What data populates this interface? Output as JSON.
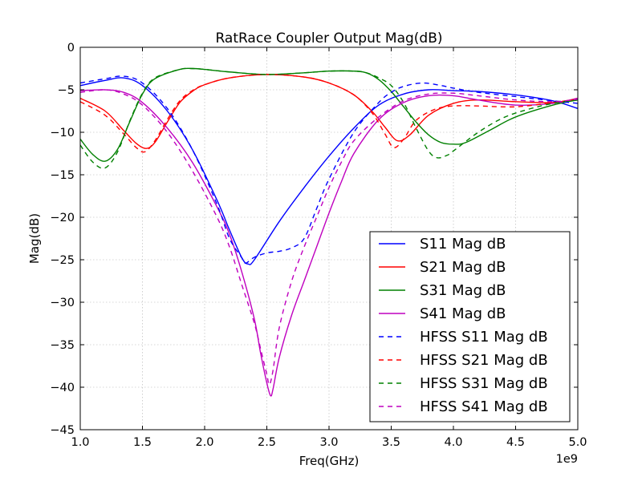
{
  "chart_data": {
    "type": "line",
    "title": "RatRace Coupler Output Mag(dB)",
    "xlabel": "Freq(GHz)",
    "ylabel": "Mag(dB)",
    "x_offset_label": "1e9",
    "xlim": [
      1.0,
      5.0
    ],
    "ylim": [
      -45,
      0
    ],
    "x_ticks": [
      1.0,
      1.5,
      2.0,
      2.5,
      3.0,
      3.5,
      4.0,
      4.5,
      5.0
    ],
    "x_tick_labels": [
      "1.0",
      "1.5",
      "2.0",
      "2.5",
      "3.0",
      "3.5",
      "4.0",
      "4.5",
      "5.0"
    ],
    "y_ticks": [
      0,
      -5,
      -10,
      -15,
      -20,
      -25,
      -30,
      -35,
      -40,
      -45
    ],
    "y_tick_labels": [
      "0",
      "−5",
      "−10",
      "−15",
      "−20",
      "−25",
      "−30",
      "−35",
      "−40",
      "−45"
    ],
    "grid": true,
    "legend_position": "lower-right",
    "series": [
      {
        "name": "S11 Mag dB",
        "color": "#0000ff",
        "style": "solid",
        "x": [
          1.0,
          1.2,
          1.35,
          1.5,
          1.7,
          1.9,
          2.1,
          2.2,
          2.3,
          2.35,
          2.4,
          2.6,
          2.8,
          3.0,
          3.2,
          3.4,
          3.6,
          3.8,
          4.0,
          4.2,
          4.5,
          4.8,
          5.0
        ],
        "y": [
          -4.5,
          -3.9,
          -3.6,
          -4.5,
          -7.5,
          -12.0,
          -18.0,
          -21.5,
          -24.8,
          -25.5,
          -25.0,
          -20.5,
          -16.5,
          -12.8,
          -9.5,
          -6.8,
          -5.5,
          -5.0,
          -5.1,
          -5.2,
          -5.6,
          -6.3,
          -7.2
        ]
      },
      {
        "name": "S21 Mag dB",
        "color": "#ff0000",
        "style": "solid",
        "x": [
          1.0,
          1.2,
          1.35,
          1.45,
          1.53,
          1.6,
          1.7,
          1.8,
          1.9,
          2.0,
          2.2,
          2.5,
          2.8,
          3.0,
          3.2,
          3.35,
          3.45,
          3.55,
          3.65,
          3.8,
          4.0,
          4.2,
          4.5,
          4.8,
          5.0
        ],
        "y": [
          -6.0,
          -7.5,
          -9.8,
          -11.3,
          -11.9,
          -11.2,
          -8.8,
          -6.5,
          -5.2,
          -4.4,
          -3.6,
          -3.2,
          -3.5,
          -4.2,
          -5.6,
          -7.6,
          -9.4,
          -11.0,
          -10.3,
          -8.0,
          -6.6,
          -6.2,
          -6.4,
          -6.5,
          -6.0
        ]
      },
      {
        "name": "S31 Mag dB",
        "color": "#008000",
        "style": "solid",
        "x": [
          1.0,
          1.1,
          1.2,
          1.3,
          1.4,
          1.5,
          1.6,
          1.8,
          1.9,
          2.0,
          2.2,
          2.5,
          2.8,
          3.0,
          3.2,
          3.3,
          3.4,
          3.5,
          3.6,
          3.7,
          3.8,
          3.9,
          4.0,
          4.1,
          4.3,
          4.5,
          4.8,
          5.0
        ],
        "y": [
          -10.8,
          -12.6,
          -13.4,
          -12.0,
          -8.7,
          -5.5,
          -3.7,
          -2.6,
          -2.5,
          -2.6,
          -2.9,
          -3.2,
          -3.0,
          -2.8,
          -2.8,
          -3.0,
          -3.8,
          -5.2,
          -7.0,
          -8.8,
          -10.3,
          -11.2,
          -11.4,
          -11.2,
          -9.7,
          -8.2,
          -6.8,
          -6.2
        ]
      },
      {
        "name": "S41 Mag dB",
        "color": "#bf00bf",
        "style": "solid",
        "x": [
          1.0,
          1.2,
          1.35,
          1.5,
          1.7,
          1.9,
          2.1,
          2.2,
          2.3,
          2.4,
          2.45,
          2.5,
          2.53,
          2.55,
          2.6,
          2.7,
          2.8,
          2.9,
          3.0,
          3.1,
          3.2,
          3.4,
          3.6,
          3.8,
          4.0,
          4.2,
          4.5,
          4.8,
          5.0
        ],
        "y": [
          -5.1,
          -5.0,
          -5.3,
          -6.5,
          -9.5,
          -13.5,
          -18.8,
          -22.0,
          -26.5,
          -32.0,
          -36.0,
          -39.5,
          -41.0,
          -40.2,
          -36.5,
          -31.5,
          -27.5,
          -23.5,
          -19.5,
          -15.8,
          -12.5,
          -8.5,
          -6.5,
          -5.7,
          -5.7,
          -6.2,
          -6.8,
          -6.6,
          -6.0
        ]
      },
      {
        "name": "HFSS S11 Mag dB",
        "color": "#0000ff",
        "style": "dashed",
        "x": [
          1.0,
          1.2,
          1.35,
          1.5,
          1.7,
          1.9,
          2.1,
          2.2,
          2.3,
          2.33,
          2.4,
          2.5,
          2.6,
          2.7,
          2.8,
          2.9,
          3.0,
          3.2,
          3.4,
          3.5,
          3.6,
          3.75,
          3.9,
          4.0,
          4.2,
          4.5,
          4.8,
          5.0
        ],
        "y": [
          -4.2,
          -3.7,
          -3.4,
          -4.2,
          -7.2,
          -12.0,
          -18.5,
          -22.5,
          -24.8,
          -25.4,
          -24.7,
          -24.2,
          -24.0,
          -23.6,
          -22.5,
          -19.0,
          -15.5,
          -10.0,
          -6.5,
          -5.3,
          -4.6,
          -4.2,
          -4.5,
          -4.8,
          -5.3,
          -5.8,
          -6.3,
          -6.6
        ]
      },
      {
        "name": "HFSS S21 Mag dB",
        "color": "#ff0000",
        "style": "dashed",
        "x": [
          1.0,
          1.2,
          1.35,
          1.45,
          1.52,
          1.6,
          1.7,
          1.8,
          1.9,
          2.0,
          2.2,
          2.5,
          2.8,
          3.0,
          3.2,
          3.35,
          3.45,
          3.52,
          3.6,
          3.7,
          3.85,
          4.0,
          4.2,
          4.5,
          4.8,
          5.0
        ],
        "y": [
          -6.4,
          -8.0,
          -10.2,
          -11.8,
          -12.3,
          -11.0,
          -8.5,
          -6.3,
          -5.1,
          -4.4,
          -3.6,
          -3.2,
          -3.5,
          -4.2,
          -5.6,
          -7.8,
          -10.2,
          -11.8,
          -10.8,
          -8.6,
          -7.3,
          -6.9,
          -6.9,
          -7.0,
          -6.5,
          -6.1
        ]
      },
      {
        "name": "HFSS S31 Mag dB",
        "color": "#008000",
        "style": "dashed",
        "x": [
          1.0,
          1.1,
          1.2,
          1.3,
          1.4,
          1.5,
          1.6,
          1.8,
          1.9,
          2.0,
          2.2,
          2.5,
          2.8,
          3.0,
          3.2,
          3.3,
          3.4,
          3.5,
          3.6,
          3.7,
          3.8,
          3.87,
          3.95,
          4.0,
          4.2,
          4.4,
          4.6,
          4.8,
          5.0
        ],
        "y": [
          -11.5,
          -13.5,
          -14.2,
          -12.3,
          -8.6,
          -5.4,
          -3.6,
          -2.6,
          -2.5,
          -2.6,
          -2.9,
          -3.2,
          -3.0,
          -2.8,
          -2.8,
          -3.0,
          -3.6,
          -4.5,
          -6.5,
          -9.5,
          -12.2,
          -13.0,
          -12.7,
          -12.2,
          -10.0,
          -8.3,
          -7.3,
          -6.6,
          -6.2
        ]
      },
      {
        "name": "HFSS S41 Mag dB",
        "color": "#bf00bf",
        "style": "dashed",
        "x": [
          1.0,
          1.2,
          1.35,
          1.5,
          1.7,
          1.9,
          2.1,
          2.2,
          2.3,
          2.4,
          2.45,
          2.5,
          2.52,
          2.55,
          2.6,
          2.7,
          2.8,
          2.9,
          3.0,
          3.1,
          3.2,
          3.4,
          3.6,
          3.8,
          4.0,
          4.2,
          4.5,
          4.8,
          5.0
        ],
        "y": [
          -5.3,
          -5.0,
          -5.5,
          -6.8,
          -10.0,
          -14.5,
          -20.0,
          -23.5,
          -28.0,
          -32.5,
          -35.5,
          -38.5,
          -39.7,
          -38.0,
          -33.0,
          -27.5,
          -23.5,
          -20.0,
          -16.5,
          -13.5,
          -11.0,
          -8.2,
          -6.3,
          -5.5,
          -5.4,
          -5.7,
          -6.2,
          -6.4,
          -6.1
        ]
      }
    ]
  }
}
